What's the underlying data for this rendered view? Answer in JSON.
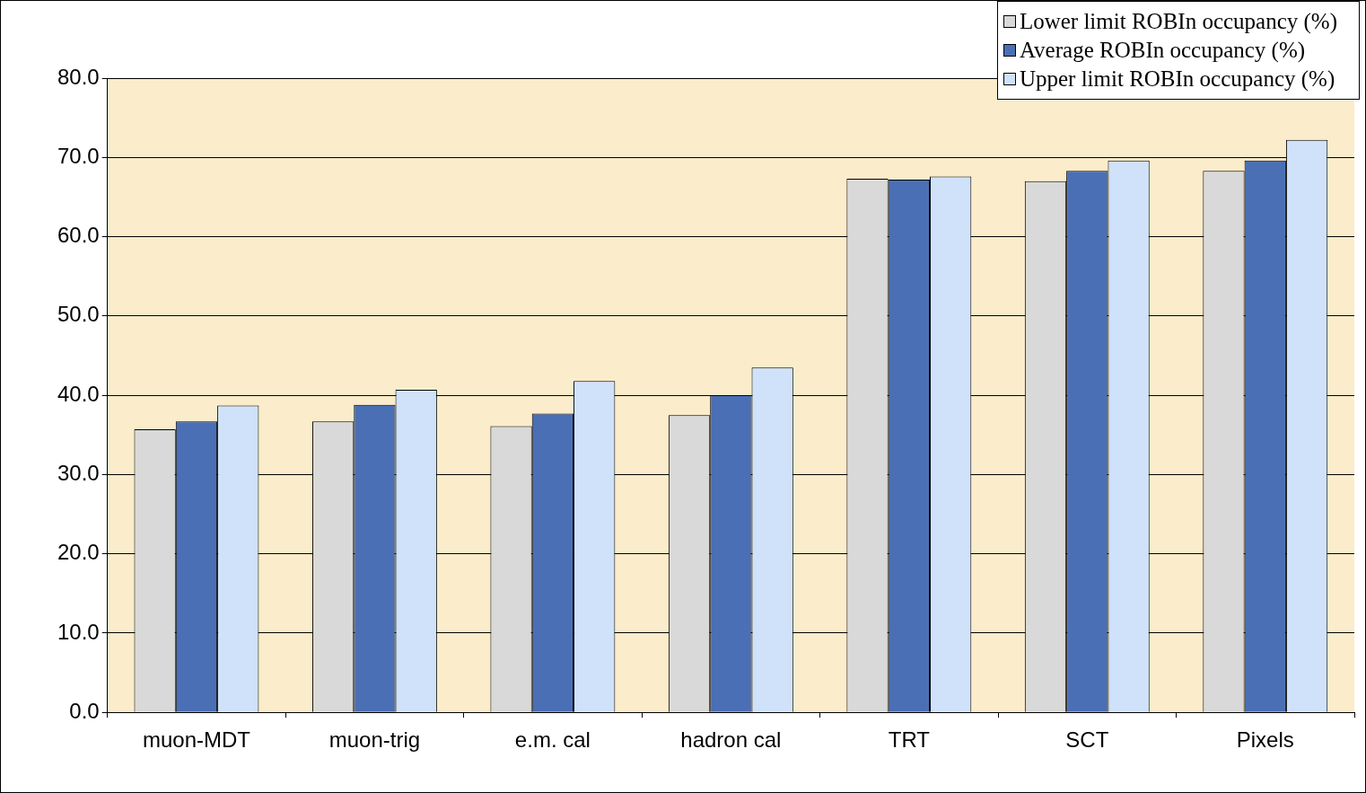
{
  "chart_data": {
    "type": "bar",
    "categories": [
      "muon-MDT",
      "muon-trig",
      "e.m. cal",
      "hadron cal",
      "TRT",
      "SCT",
      "Pixels"
    ],
    "series": [
      {
        "name": "Lower limit ROBIn occupancy (%)",
        "color": "#d9d9d9",
        "values": [
          35.7,
          36.7,
          36.1,
          37.5,
          67.3,
          67.0,
          68.3
        ]
      },
      {
        "name": "Average ROBIn occupancy (%)",
        "color": "#4a6fb5",
        "values": [
          36.7,
          38.8,
          37.7,
          40.0,
          67.2,
          68.3,
          69.6
        ]
      },
      {
        "name": "Upper limit ROBIn occupancy (%)",
        "color": "#cfe2fa",
        "values": [
          38.7,
          40.7,
          41.8,
          43.5,
          67.6,
          69.6,
          72.2
        ]
      }
    ],
    "ylim": [
      0,
      80
    ],
    "yticks": [
      {
        "value": 0,
        "label": "0.0"
      },
      {
        "value": 10,
        "label": "10.0"
      },
      {
        "value": 20,
        "label": "20.0"
      },
      {
        "value": 30,
        "label": "30.0"
      },
      {
        "value": 40,
        "label": "40.0"
      },
      {
        "value": 50,
        "label": "50.0"
      },
      {
        "value": 60,
        "label": "60.0"
      },
      {
        "value": 70,
        "label": "70.0"
      },
      {
        "value": 80,
        "label": "80.0"
      }
    ],
    "grid": "y",
    "legend": "top right"
  }
}
